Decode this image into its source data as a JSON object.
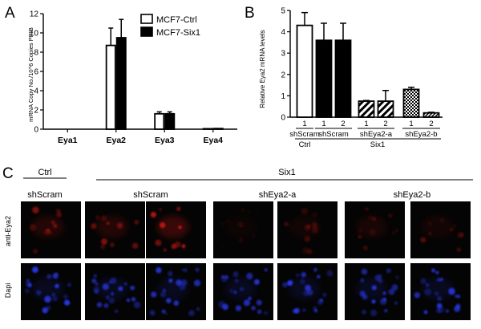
{
  "panels": {
    "A": {
      "letter": "A",
      "chart_data": {
        "type": "bar",
        "ylabel": "mRNA Copy No./10^6 Copies PPIB",
        "xlabel": "",
        "ylim": [
          0,
          12
        ],
        "yticks": [
          0,
          2,
          4,
          6,
          8,
          10,
          12
        ],
        "categories": [
          "Eya1",
          "Eya2",
          "Eya3",
          "Eya4"
        ],
        "legend_position": "top-right",
        "series": [
          {
            "name": "MCF7-Ctrl",
            "fill": "#ffffff",
            "values": [
              0,
              8.7,
              1.6,
              0.05
            ],
            "errors": [
              0,
              1.8,
              0.2,
              0.02
            ]
          },
          {
            "name": "MCF7-Six1",
            "fill": "#000000",
            "values": [
              0,
              9.5,
              1.6,
              0.07
            ],
            "errors": [
              0,
              1.9,
              0.2,
              0.02
            ]
          }
        ]
      }
    },
    "B": {
      "letter": "B",
      "chart_data": {
        "type": "bar",
        "ylabel": "Relative Eya2 mRNA levels",
        "xlabel": "",
        "ylim": [
          0,
          5
        ],
        "yticks": [
          0,
          1,
          2,
          3,
          4,
          5
        ],
        "bars": [
          {
            "clone": "1",
            "value": 4.3,
            "error": 0.6,
            "fill": "white"
          },
          {
            "clone": "1",
            "value": 3.6,
            "error": 0.8,
            "fill": "black"
          },
          {
            "clone": "2",
            "value": 3.6,
            "error": 0.8,
            "fill": "black"
          },
          {
            "clone": "1",
            "value": 0.75,
            "error": 0.03,
            "fill": "diag-wide"
          },
          {
            "clone": "2",
            "value": 0.75,
            "error": 0.5,
            "fill": "diag-wide"
          },
          {
            "clone": "1",
            "value": 1.3,
            "error": 0.1,
            "fill": "checker"
          },
          {
            "clone": "2",
            "value": 0.2,
            "error": 0.03,
            "fill": "diag-fine"
          }
        ],
        "groups": [
          {
            "label": "shScram",
            "from": 0,
            "to": 0
          },
          {
            "label": "shScram",
            "from": 1,
            "to": 2
          },
          {
            "label": "shEya2-a",
            "from": 3,
            "to": 4
          },
          {
            "label": "shEya2-b",
            "from": 5,
            "to": 6
          }
        ],
        "conditions": [
          {
            "label": "Ctrl",
            "from": 0,
            "to": 0
          },
          {
            "label": "Six1",
            "from": 1,
            "to": 6
          }
        ]
      }
    },
    "C": {
      "letter": "C",
      "ctrl_label": "Ctrl",
      "six1_label": "Six1",
      "columns": [
        "shScram",
        "shScram",
        "shEya2-a",
        "shEya2-b"
      ],
      "row_labels": [
        "anti-Eya2",
        "Dapi"
      ],
      "stain_colors": {
        "anti-Eya2": "#dd1a12",
        "Dapi": "#2f3cff"
      },
      "eya2_intensity": [
        0.55,
        0.55,
        0.95,
        0.15,
        0.25,
        0.35,
        0.3
      ]
    }
  }
}
